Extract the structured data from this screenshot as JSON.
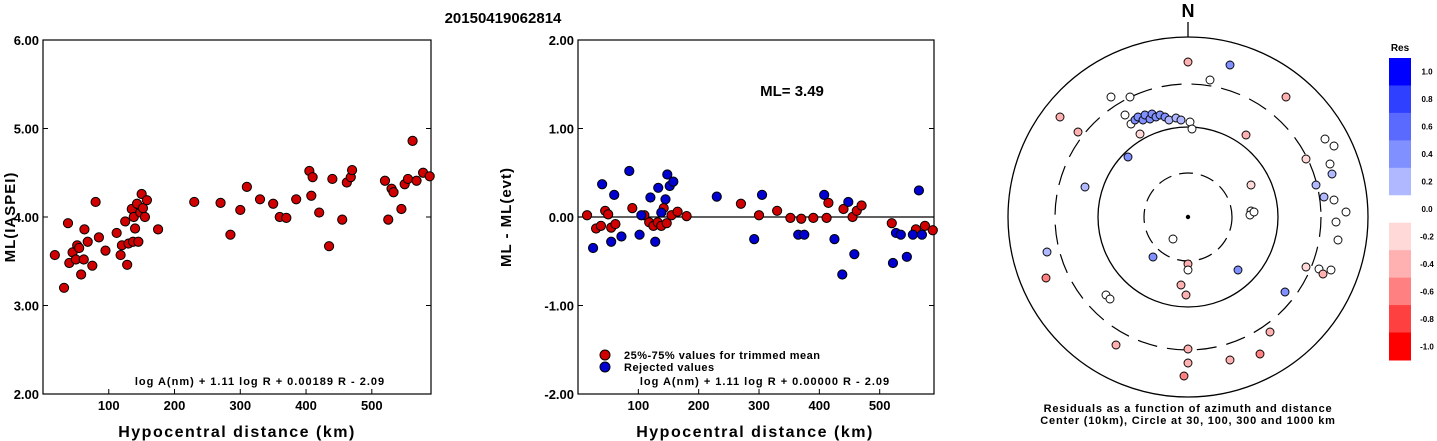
{
  "title": "20150419062814",
  "chart_data": [
    {
      "type": "scatter",
      "xlabel": "Hypocentral distance (km)",
      "ylabel": "ML(IASPEI)",
      "xlim": [
        0,
        590
      ],
      "ylim": [
        2.0,
        6.0
      ],
      "yticks": [
        "6.00",
        "5.00",
        "4.00",
        "3.00",
        "2.00"
      ],
      "xticks": [
        "100",
        "200",
        "300",
        "400",
        "500"
      ],
      "formula": "log A(nm) + 1.11 log R + 0.00189 R - 2.09",
      "grid": false,
      "series": [
        {
          "color": "#d00000",
          "points": [
            [
              18,
              3.57
            ],
            [
              32,
              3.2
            ],
            [
              38,
              3.93
            ],
            [
              40,
              3.48
            ],
            [
              45,
              3.6
            ],
            [
              50,
              3.52
            ],
            [
              52,
              3.68
            ],
            [
              55,
              3.65
            ],
            [
              58,
              3.35
            ],
            [
              62,
              3.52
            ],
            [
              63,
              3.86
            ],
            [
              68,
              3.72
            ],
            [
              75,
              3.45
            ],
            [
              80,
              4.17
            ],
            [
              85,
              3.77
            ],
            [
              95,
              3.62
            ],
            [
              112,
              3.82
            ],
            [
              118,
              3.57
            ],
            [
              120,
              3.68
            ],
            [
              125,
              3.95
            ],
            [
              128,
              3.46
            ],
            [
              130,
              3.7
            ],
            [
              135,
              4.09
            ],
            [
              137,
              3.72
            ],
            [
              138,
              4.0
            ],
            [
              140,
              3.87
            ],
            [
              143,
              4.15
            ],
            [
              145,
              3.72
            ],
            [
              148,
              4.05
            ],
            [
              150,
              4.26
            ],
            [
              152,
              4.1
            ],
            [
              155,
              4.0
            ],
            [
              158,
              4.19
            ],
            [
              175,
              3.86
            ],
            [
              230,
              4.17
            ],
            [
              270,
              4.16
            ],
            [
              285,
              3.8
            ],
            [
              300,
              4.08
            ],
            [
              310,
              4.34
            ],
            [
              330,
              4.2
            ],
            [
              350,
              4.15
            ],
            [
              360,
              4.0
            ],
            [
              370,
              3.99
            ],
            [
              385,
              4.2
            ],
            [
              405,
              4.52
            ],
            [
              408,
              4.24
            ],
            [
              410,
              4.45
            ],
            [
              420,
              4.05
            ],
            [
              435,
              3.67
            ],
            [
              440,
              4.43
            ],
            [
              455,
              3.97
            ],
            [
              462,
              4.39
            ],
            [
              468,
              4.45
            ],
            [
              470,
              4.53
            ],
            [
              520,
              4.41
            ],
            [
              525,
              3.97
            ],
            [
              530,
              4.32
            ],
            [
              533,
              4.28
            ],
            [
              545,
              4.09
            ],
            [
              550,
              4.37
            ],
            [
              555,
              4.43
            ],
            [
              562,
              4.86
            ],
            [
              568,
              4.41
            ],
            [
              578,
              4.5
            ],
            [
              588,
              4.46
            ]
          ]
        }
      ]
    },
    {
      "type": "scatter",
      "xlabel": "Hypocentral distance (km)",
      "ylabel": "ML - ML(evt)",
      "xlim": [
        0,
        590
      ],
      "ylim": [
        -2.0,
        2.0
      ],
      "yticks": [
        "2.00",
        "1.00",
        "0.00",
        "-1.00",
        "-2.00"
      ],
      "xticks": [
        "100",
        "200",
        "300",
        "400",
        "500"
      ],
      "annotation": "ML= 3.49",
      "formula": "log A(nm) + 1.11 log R + 0.00000 R - 2.09",
      "legend": [
        "25%-75% values for trimmed mean",
        "Rejected values"
      ],
      "legend_position": "bottom-left",
      "series": [
        {
          "name": "25%-75% values for trimmed mean",
          "color": "#d00000",
          "points": [
            [
              15,
              0.02
            ],
            [
              30,
              -0.13
            ],
            [
              38,
              -0.1
            ],
            [
              45,
              0.07
            ],
            [
              50,
              0.03
            ],
            [
              55,
              -0.12
            ],
            [
              62,
              -0.08
            ],
            [
              90,
              0.1
            ],
            [
              110,
              0.02
            ],
            [
              118,
              -0.06
            ],
            [
              125,
              -0.1
            ],
            [
              132,
              -0.06
            ],
            [
              138,
              -0.1
            ],
            [
              142,
              0.1
            ],
            [
              147,
              -0.07
            ],
            [
              155,
              0.02
            ],
            [
              165,
              0.06
            ],
            [
              180,
              0.01
            ],
            [
              270,
              0.15
            ],
            [
              300,
              0.02
            ],
            [
              330,
              0.07
            ],
            [
              352,
              -0.01
            ],
            [
              370,
              -0.02
            ],
            [
              390,
              -0.01
            ],
            [
              412,
              -0.01
            ],
            [
              415,
              0.16
            ],
            [
              440,
              0.09
            ],
            [
              455,
              0.0
            ],
            [
              462,
              0.07
            ],
            [
              470,
              0.13
            ],
            [
              520,
              -0.07
            ],
            [
              560,
              -0.14
            ],
            [
              575,
              -0.1
            ],
            [
              588,
              -0.15
            ]
          ]
        },
        {
          "name": "Rejected values",
          "color": "#0000d0",
          "points": [
            [
              25,
              -0.35
            ],
            [
              40,
              0.37
            ],
            [
              55,
              -0.28
            ],
            [
              60,
              0.25
            ],
            [
              72,
              -0.22
            ],
            [
              85,
              0.52
            ],
            [
              102,
              -0.2
            ],
            [
              105,
              0.02
            ],
            [
              120,
              0.22
            ],
            [
              128,
              -0.28
            ],
            [
              133,
              0.33
            ],
            [
              138,
              0.05
            ],
            [
              145,
              0.2
            ],
            [
              148,
              0.48
            ],
            [
              152,
              0.35
            ],
            [
              158,
              0.4
            ],
            [
              230,
              0.23
            ],
            [
              292,
              -0.25
            ],
            [
              305,
              0.25
            ],
            [
              365,
              -0.2
            ],
            [
              375,
              -0.2
            ],
            [
              408,
              0.25
            ],
            [
              425,
              -0.25
            ],
            [
              438,
              -0.65
            ],
            [
              448,
              0.17
            ],
            [
              458,
              -0.42
            ],
            [
              522,
              -0.52
            ],
            [
              527,
              -0.18
            ],
            [
              535,
              -0.2
            ],
            [
              545,
              -0.45
            ],
            [
              555,
              -0.2
            ],
            [
              565,
              0.3
            ],
            [
              570,
              -0.2
            ]
          ]
        }
      ]
    },
    {
      "type": "polar-scatter",
      "north_label": "N",
      "caption": [
        "Residuals as a function of azimuth and distance",
        "Center (10km), Circle at 30, 100, 300 and 1000 km"
      ],
      "rings_km": [
        30,
        100,
        300,
        1000
      ],
      "colorbar": {
        "title": "Res",
        "ticks": [
          "1.0",
          "0.8",
          "0.6",
          "0.4",
          "0.2",
          "0.0",
          "-0.2",
          "-0.4",
          "-0.6",
          "-0.8",
          "-1.0"
        ],
        "colors": [
          "#0000ff",
          "#3040ff",
          "#5a6aff",
          "#8090ff",
          "#b0b8ff",
          "#ffffff",
          "#ffd8d8",
          "#ffb0b0",
          "#ff8080",
          "#ff4040",
          "#ff0000"
        ]
      },
      "points": [
        {
          "dx": 0,
          "dy": -155,
          "res": -0.35
        },
        {
          "dx": 22,
          "dy": -137,
          "res": 0.0
        },
        {
          "dx": 42,
          "dy": -152,
          "res": 0.3
        },
        {
          "dx": -58,
          "dy": -120,
          "res": 0.0
        },
        {
          "dx": -77,
          "dy": -120,
          "res": -0.05
        },
        {
          "dx": 98,
          "dy": -120,
          "res": -0.3
        },
        {
          "dx": -128,
          "dy": -100,
          "res": -0.3
        },
        {
          "dx": -110,
          "dy": -85,
          "res": -0.3
        },
        {
          "dx": -63,
          "dy": -102,
          "res": 0.05
        },
        {
          "dx": -57,
          "dy": -93,
          "res": 0.0
        },
        {
          "dx": -53,
          "dy": -97,
          "res": 0.3
        },
        {
          "dx": -50,
          "dy": -100,
          "res": 0.35
        },
        {
          "dx": -45,
          "dy": -97,
          "res": 0.3
        },
        {
          "dx": -43,
          "dy": -102,
          "res": 0.4
        },
        {
          "dx": -38,
          "dy": -98,
          "res": 0.35
        },
        {
          "dx": -36,
          "dy": -103,
          "res": 0.4
        },
        {
          "dx": -32,
          "dy": -100,
          "res": 0.35
        },
        {
          "dx": -28,
          "dy": -102,
          "res": 0.35
        },
        {
          "dx": -23,
          "dy": -100,
          "res": 0.3
        },
        {
          "dx": -19,
          "dy": -97,
          "res": 0.15
        },
        {
          "dx": -12,
          "dy": -99,
          "res": 0.15
        },
        {
          "dx": -7,
          "dy": -97,
          "res": 0.15
        },
        {
          "dx": 2,
          "dy": -95,
          "res": 0.1
        },
        {
          "dx": 4,
          "dy": -88,
          "res": 0.0
        },
        {
          "dx": 58,
          "dy": -82,
          "res": -0.3
        },
        {
          "dx": -48,
          "dy": -83,
          "res": -0.2
        },
        {
          "dx": -60,
          "dy": -60,
          "res": 0.5
        },
        {
          "dx": -103,
          "dy": -30,
          "res": 0.2
        },
        {
          "dx": 118,
          "dy": -58,
          "res": -0.1
        },
        {
          "dx": 137,
          "dy": -78,
          "res": 0.05
        },
        {
          "dx": 146,
          "dy": -71,
          "res": 0.1
        },
        {
          "dx": 142,
          "dy": -53,
          "res": 0.0
        },
        {
          "dx": 63,
          "dy": -32,
          "res": -0.2
        },
        {
          "dx": 128,
          "dy": -32,
          "res": 0.25
        },
        {
          "dx": 136,
          "dy": -20,
          "res": 0.15
        },
        {
          "dx": 144,
          "dy": -43,
          "res": 0.2
        },
        {
          "dx": 146,
          "dy": -17,
          "res": 0.0
        },
        {
          "dx": 158,
          "dy": -5,
          "res": 0.0
        },
        {
          "dx": 148,
          "dy": 5,
          "res": 0.0
        },
        {
          "dx": 150,
          "dy": 23,
          "res": 0.0
        },
        {
          "dx": 63,
          "dy": -6,
          "res": 0.0
        },
        {
          "dx": 62,
          "dy": -2,
          "res": 0.0
        },
        {
          "dx": 66,
          "dy": -5,
          "res": 0.0
        },
        {
          "dx": -15,
          "dy": 22,
          "res": 0.0
        },
        {
          "dx": 0,
          "dy": 47,
          "res": -0.3
        },
        {
          "dx": 0,
          "dy": 53,
          "res": 0.0
        },
        {
          "dx": -35,
          "dy": 40,
          "res": 0.3
        },
        {
          "dx": 50,
          "dy": 53,
          "res": 0.3
        },
        {
          "dx": -7,
          "dy": 68,
          "res": -0.4
        },
        {
          "dx": -2,
          "dy": 78,
          "res": -0.4
        },
        {
          "dx": -141,
          "dy": 35,
          "res": 0.2
        },
        {
          "dx": -142,
          "dy": 61,
          "res": -0.5
        },
        {
          "dx": -82,
          "dy": 78,
          "res": 0.0
        },
        {
          "dx": -78,
          "dy": 82,
          "res": 0.0
        },
        {
          "dx": 97,
          "dy": 75,
          "res": 0.3
        },
        {
          "dx": 118,
          "dy": 50,
          "res": -0.2
        },
        {
          "dx": 131,
          "dy": 52,
          "res": 0.0
        },
        {
          "dx": 135,
          "dy": 57,
          "res": -0.4
        },
        {
          "dx": 143,
          "dy": 53,
          "res": 0.0
        },
        {
          "dx": 82,
          "dy": 115,
          "res": -0.3
        },
        {
          "dx": -72,
          "dy": 128,
          "res": -0.3
        },
        {
          "dx": 0,
          "dy": 132,
          "res": -0.3
        },
        {
          "dx": 0,
          "dy": 146,
          "res": -0.4
        },
        {
          "dx": -4,
          "dy": 159,
          "res": -0.5
        },
        {
          "dx": 42,
          "dy": 143,
          "res": -0.4
        },
        {
          "dx": 72,
          "dy": 137,
          "res": -0.5
        }
      ]
    }
  ]
}
